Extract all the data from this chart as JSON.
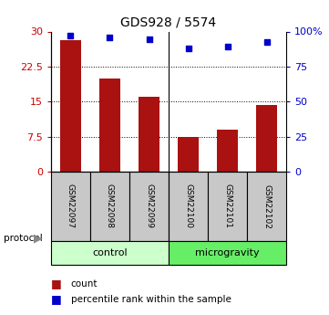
{
  "title": "GDS928 / 5574",
  "samples": [
    "GSM22097",
    "GSM22098",
    "GSM22099",
    "GSM22100",
    "GSM22101",
    "GSM22102"
  ],
  "counts": [
    28.2,
    20.0,
    16.0,
    7.5,
    9.0,
    14.2
  ],
  "percentiles": [
    97.0,
    95.5,
    94.5,
    88.0,
    89.5,
    92.5
  ],
  "groups": [
    {
      "label": "control",
      "start": 0,
      "end": 3,
      "color": "#ccffcc"
    },
    {
      "label": "microgravity",
      "start": 3,
      "end": 6,
      "color": "#66ee66"
    }
  ],
  "left_yticks": [
    0,
    7.5,
    15,
    22.5,
    30
  ],
  "right_yticks": [
    0,
    25,
    50,
    75,
    100
  ],
  "right_yticklabels": [
    "0",
    "25",
    "50",
    "75",
    "100%"
  ],
  "bar_color": "#aa1111",
  "scatter_color": "#0000cc",
  "left_tick_color": "#cc0000",
  "right_tick_color": "#0000cc",
  "ylim_left": [
    0,
    30
  ],
  "ylim_right": [
    0,
    100
  ],
  "figsize": [
    3.61,
    3.45
  ],
  "dpi": 100
}
